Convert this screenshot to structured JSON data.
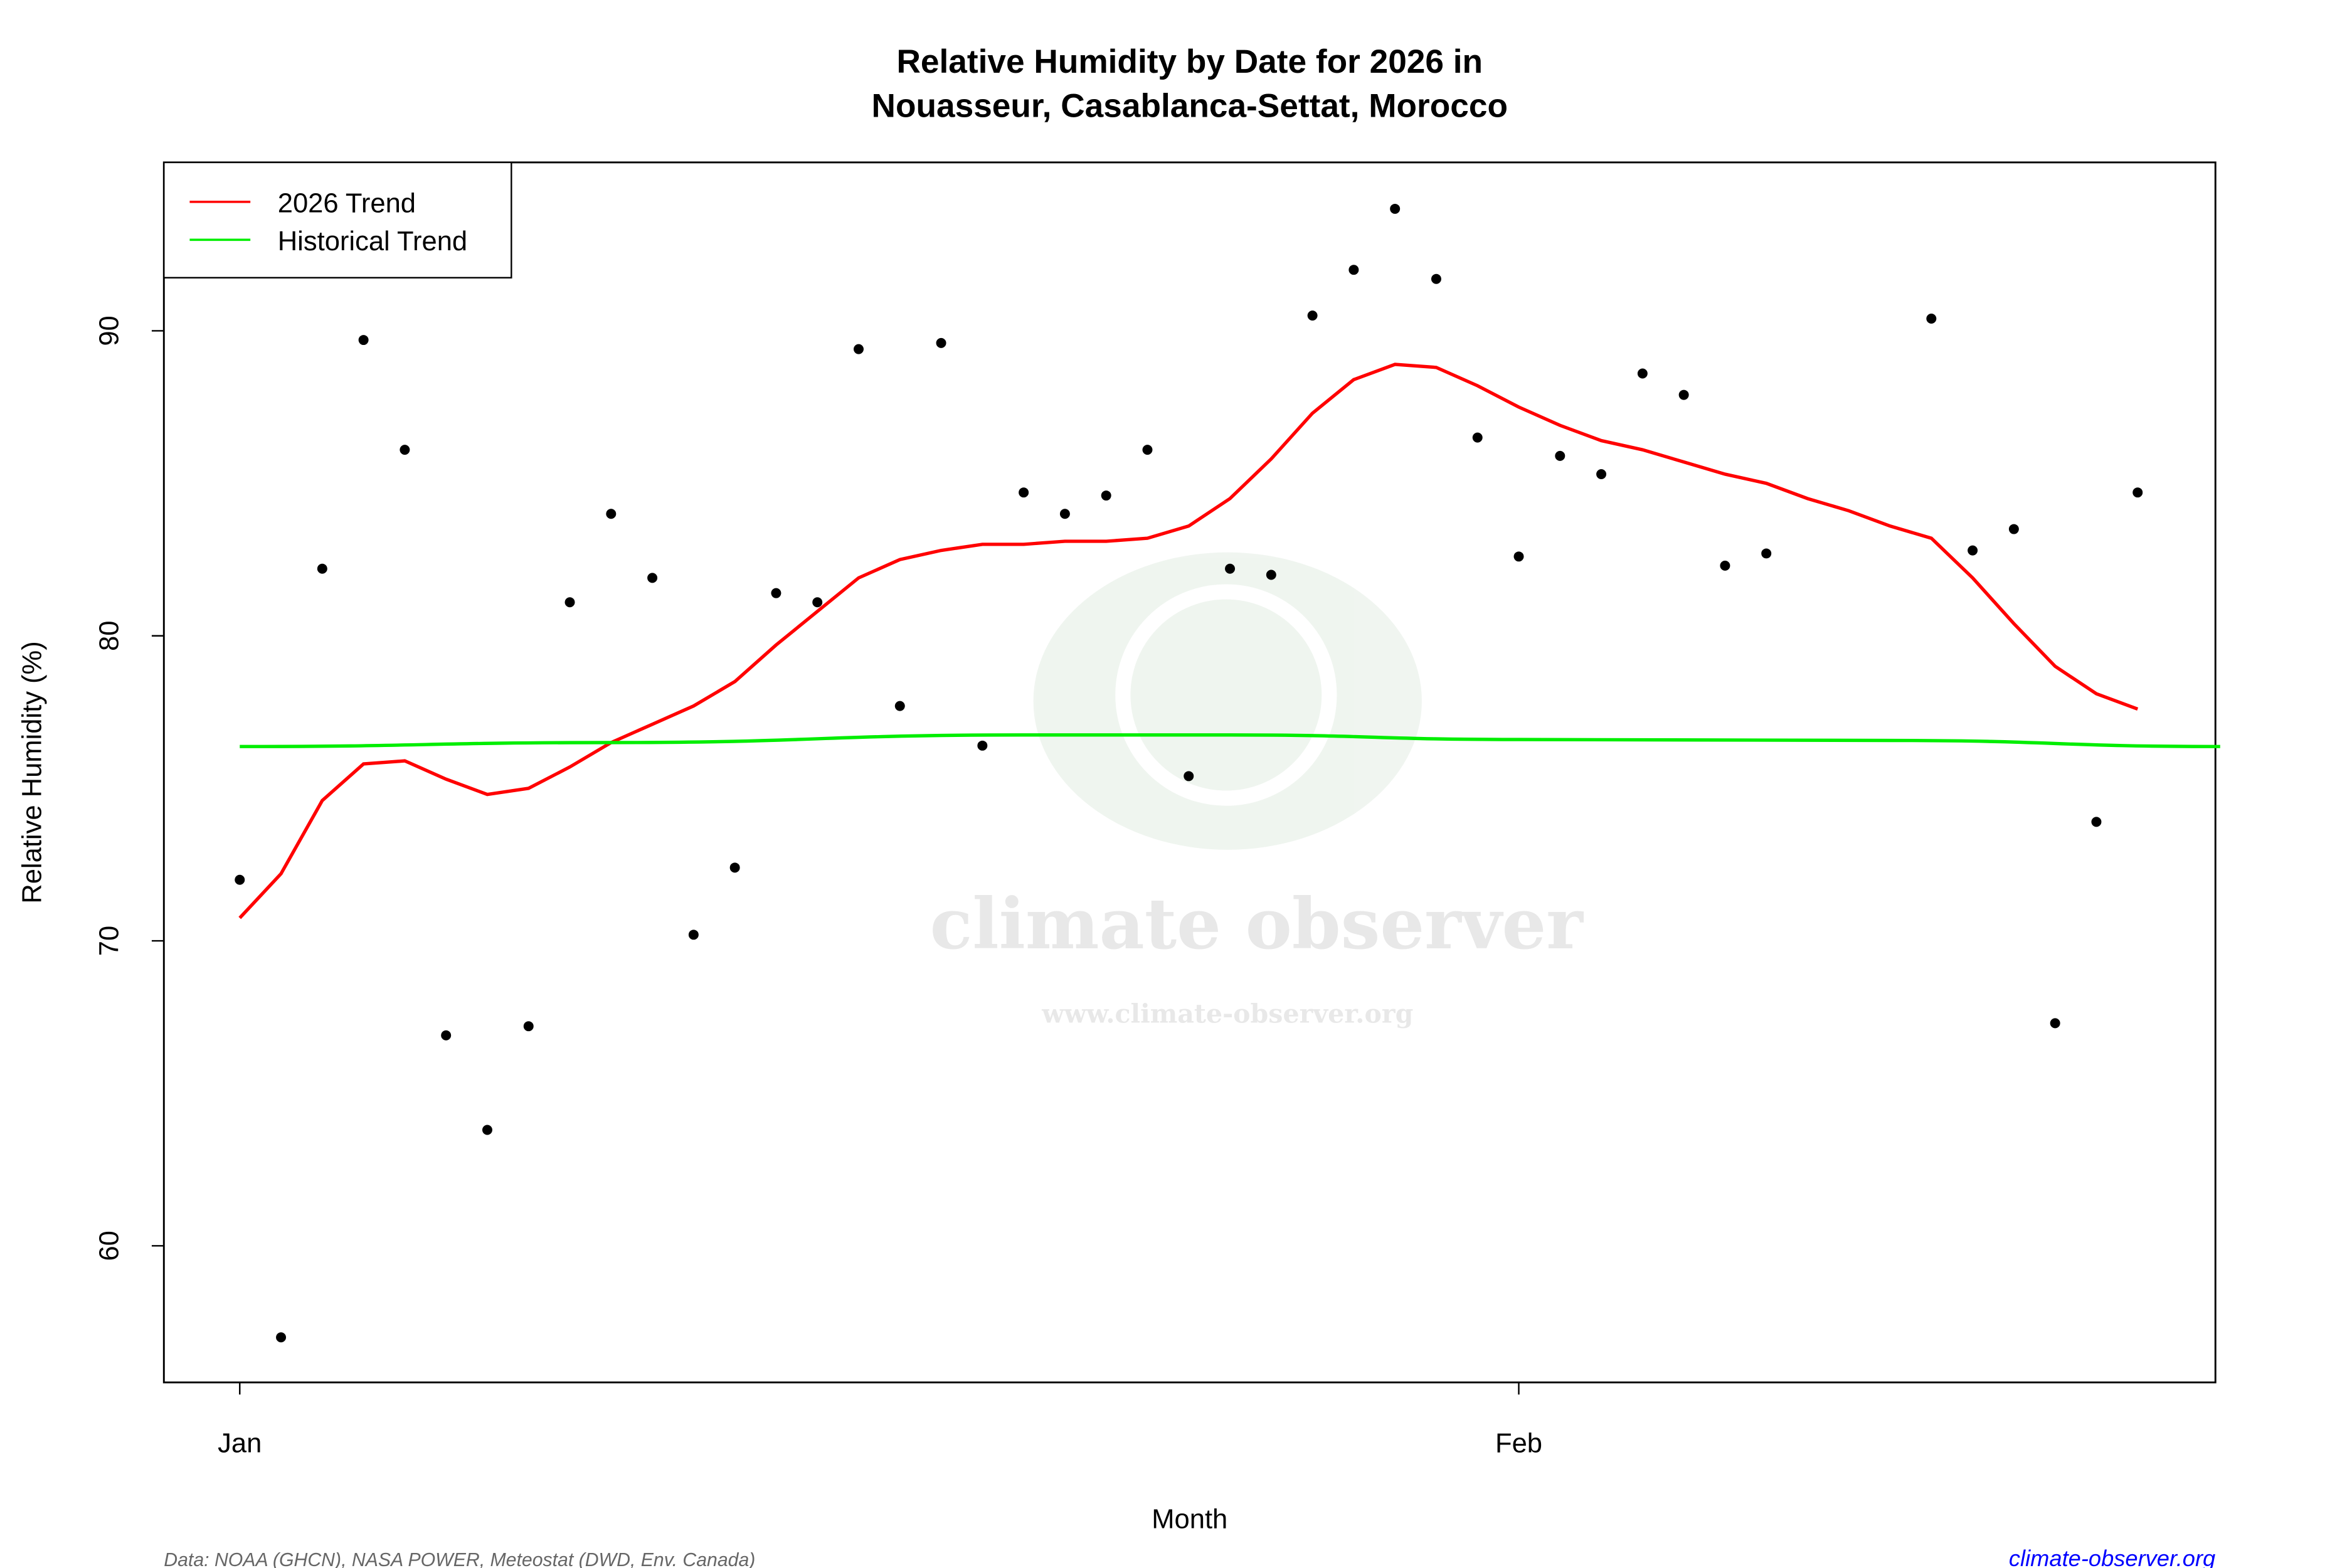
{
  "chart_data": {
    "type": "scatter",
    "title_line1": "Relative Humidity by Date for 2026 in",
    "title_line2": "Nouasseur, Casablanca-Settat, Morocco",
    "xlabel": "Month",
    "ylabel": "Relative Humidity (%)",
    "x_ticks": [
      {
        "label": "Jan",
        "date": "2026-01-01"
      },
      {
        "label": "Feb",
        "date": "2026-02-01"
      }
    ],
    "y_ticks": [
      60,
      70,
      80,
      90
    ],
    "ylim": [
      55.5,
      95.5
    ],
    "xlim": [
      "2025-12-30",
      "2026-02-18"
    ],
    "grid": false,
    "legend": {
      "position": "top-left",
      "entries": [
        {
          "label": "2026 Trend",
          "color": "#ff0000"
        },
        {
          "label": "Historical Trend",
          "color": "#00ee00"
        }
      ]
    },
    "points": {
      "dates": [
        "2026-01-01",
        "2026-01-02",
        "2026-01-03",
        "2026-01-04",
        "2026-01-05",
        "2026-01-06",
        "2026-01-07",
        "2026-01-08",
        "2026-01-09",
        "2026-01-10",
        "2026-01-11",
        "2026-01-12",
        "2026-01-13",
        "2026-01-14",
        "2026-01-15",
        "2026-01-16",
        "2026-01-17",
        "2026-01-18",
        "2026-01-19",
        "2026-01-20",
        "2026-01-21",
        "2026-01-22",
        "2026-01-23",
        "2026-01-24",
        "2026-01-25",
        "2026-01-26",
        "2026-01-27",
        "2026-01-28",
        "2026-01-29",
        "2026-01-30",
        "2026-01-31",
        "2026-02-01",
        "2026-02-02",
        "2026-02-03",
        "2026-02-04",
        "2026-02-05",
        "2026-02-06",
        "2026-02-07",
        "2026-02-11",
        "2026-02-12",
        "2026-02-13",
        "2026-02-14",
        "2026-02-15",
        "2026-02-16"
      ],
      "values": [
        72.0,
        57.0,
        82.2,
        89.7,
        86.1,
        66.9,
        63.8,
        67.2,
        81.1,
        84.0,
        81.9,
        70.2,
        72.4,
        81.4,
        81.1,
        89.4,
        77.7,
        89.6,
        76.4,
        84.7,
        84.0,
        84.6,
        86.1,
        75.4,
        82.2,
        82.0,
        90.5,
        92.0,
        94.0,
        91.7,
        86.5,
        82.6,
        85.9,
        85.3,
        88.6,
        87.9,
        82.3,
        82.7,
        90.4,
        82.8,
        83.5,
        67.3,
        73.9,
        84.7
      ],
      "color": "#000000"
    },
    "series": [
      {
        "name": "2026 Trend",
        "color": "#ff0000",
        "start_date": "2026-01-01",
        "values": [
          70.75,
          72.2,
          74.6,
          75.8,
          75.9,
          75.3,
          74.8,
          75.0,
          75.7,
          76.5,
          77.1,
          77.7,
          78.5,
          79.7,
          80.8,
          81.9,
          82.5,
          82.8,
          83.0,
          83.0,
          83.1,
          83.1,
          83.2,
          83.6,
          84.5,
          85.8,
          87.3,
          88.4,
          88.9,
          88.8,
          88.2,
          87.5,
          86.9,
          86.4,
          86.1,
          85.7,
          85.3,
          85.0,
          84.5,
          84.1,
          83.6,
          83.2,
          81.9,
          80.4,
          79.0,
          78.1,
          77.6
        ]
      },
      {
        "name": "Historical Trend",
        "color": "#00ee00",
        "dates": [
          "2026-01-01",
          "2026-01-10",
          "2026-01-20",
          "2026-01-25",
          "2026-02-01",
          "2026-02-10",
          "2026-02-18"
        ],
        "values": [
          76.37,
          76.5,
          76.75,
          76.75,
          76.6,
          76.57,
          76.37
        ]
      }
    ]
  },
  "footer": {
    "source": "Data: NOAA (GHCN), NASA POWER, Meteostat (DWD, Env. Canada)",
    "site": "climate-observer.org",
    "site_color": "#0000ff"
  },
  "watermark": {
    "name": "climate observer",
    "url": "www.climate-observer.org"
  }
}
